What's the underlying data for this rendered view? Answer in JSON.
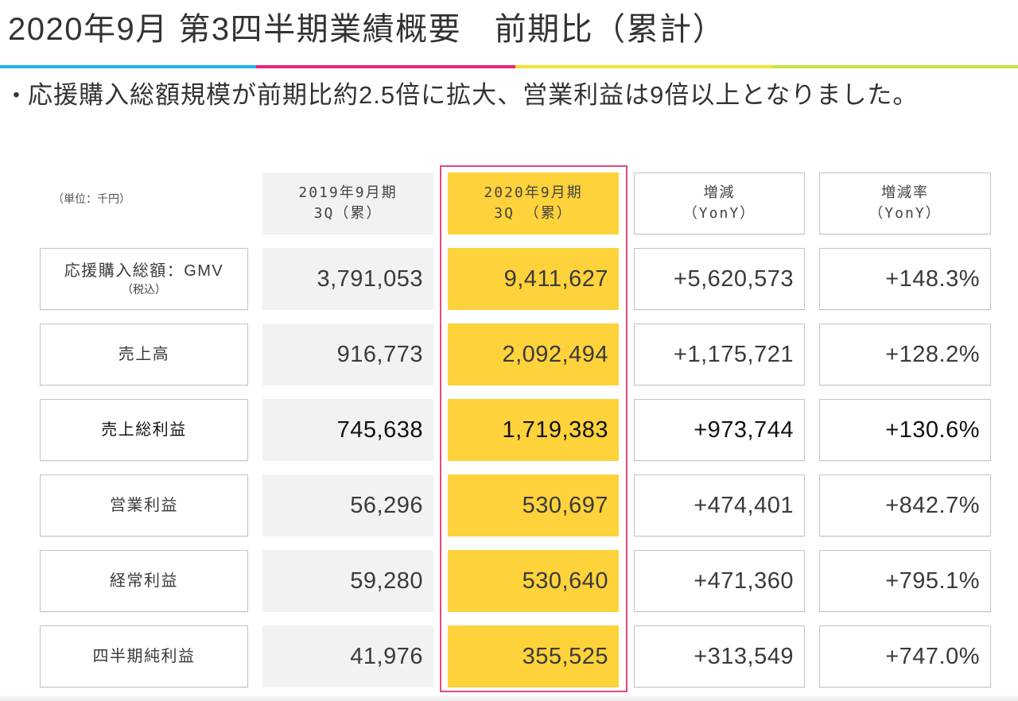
{
  "slide": {
    "title": "2020年9月 第3四半期業績概要　前期比（累計）",
    "bullet_mark": "•",
    "summary": "応援購入総額規模が前期比約2.5倍に拡大、営業利益は9倍以上となりました。"
  },
  "theme": {
    "bar_colors": [
      "#1cb6e6",
      "#e8267c",
      "#f3e234",
      "#c6e43f"
    ],
    "column_fill": "#f2f2f2",
    "highlight_fill": "#fdd23b",
    "highlight_frame": "#e4487f"
  },
  "table": {
    "unit": "（単位：千円）",
    "headers": {
      "fy2019": {
        "line1": "2019年9月期",
        "line2": "3Q（累）"
      },
      "fy2020": {
        "line1": "2020年9月期",
        "line2": "3Q （累）"
      },
      "change": {
        "line1": "増減",
        "line2": "（YonY）"
      },
      "change_rate": {
        "line1": "増減率",
        "line2": "（YonY）"
      }
    },
    "rows": [
      {
        "label": "応援購入総額：GMV",
        "sublabel": "（税込）",
        "fy2019": "3,791,053",
        "fy2020": "9,411,627",
        "change": "+5,620,573",
        "change_rate": "+148.3%"
      },
      {
        "label": "売上高",
        "fy2019": "916,773",
        "fy2020": "2,092,494",
        "change": "+1,175,721",
        "change_rate": "+128.2%"
      },
      {
        "label": "売上総利益",
        "fy2019": "745,638",
        "fy2020": "1,719,383",
        "change": "+973,744",
        "change_rate": "+130.6%"
      },
      {
        "label": "営業利益",
        "fy2019": "56,296",
        "fy2020": "530,697",
        "change": "+474,401",
        "change_rate": "+842.7%"
      },
      {
        "label": "経常利益",
        "fy2019": "59,280",
        "fy2020": "530,640",
        "change": "+471,360",
        "change_rate": "+795.1%"
      },
      {
        "label": "四半期純利益",
        "fy2019": "41,976",
        "fy2020": "355,525",
        "change": "+313,549",
        "change_rate": "+747.0%"
      }
    ]
  }
}
